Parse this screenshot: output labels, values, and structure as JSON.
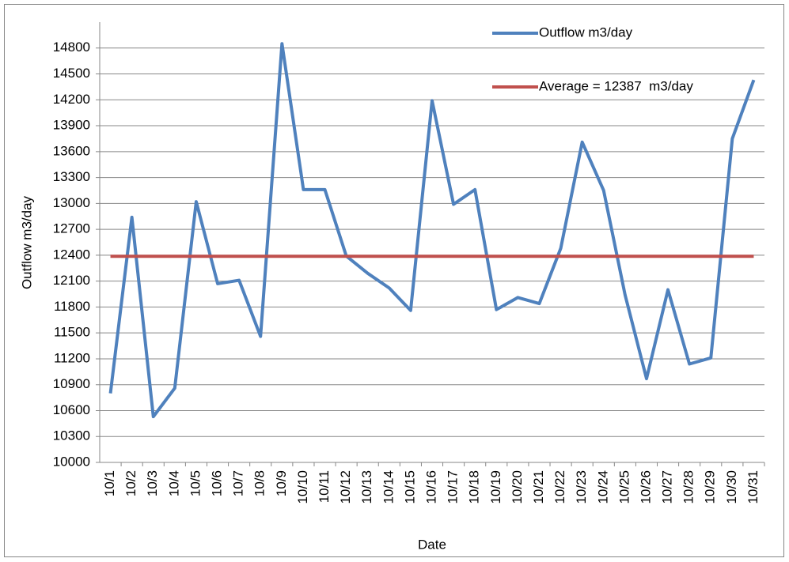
{
  "chart_data": {
    "type": "line",
    "y_label": "Outflow m3/day",
    "x_label": "Date",
    "categories": [
      "10/1",
      "10/2",
      "10/3",
      "10/4",
      "10/5",
      "10/6",
      "10/7",
      "10/8",
      "10/9",
      "10/10",
      "10/11",
      "10/12",
      "10/13",
      "10/14",
      "10/15",
      "10/16",
      "10/17",
      "10/18",
      "10/19",
      "10/20",
      "10/21",
      "10/22",
      "10/23",
      "10/24",
      "10/25",
      "10/26",
      "10/27",
      "10/28",
      "10/29",
      "10/30",
      "10/31"
    ],
    "series": [
      {
        "name": "Outflow m3/day",
        "color": "#4f81bd",
        "values": [
          10800,
          12840,
          10530,
          10860,
          13020,
          12070,
          12110,
          11460,
          14850,
          13160,
          13160,
          12390,
          12190,
          12020,
          11760,
          14190,
          12990,
          13160,
          11770,
          11910,
          11840,
          12480,
          13710,
          13150,
          11940,
          10970,
          12000,
          11140,
          11210,
          13750,
          14430
        ]
      },
      {
        "name": "Average = 12387  m3/day",
        "color": "#c0504d",
        "values": [
          12387,
          12387,
          12387,
          12387,
          12387,
          12387,
          12387,
          12387,
          12387,
          12387,
          12387,
          12387,
          12387,
          12387,
          12387,
          12387,
          12387,
          12387,
          12387,
          12387,
          12387,
          12387,
          12387,
          12387,
          12387,
          12387,
          12387,
          12387,
          12387,
          12387,
          12387
        ]
      }
    ],
    "ylim": [
      10000,
      15100
    ],
    "yticks": [
      10000,
      10300,
      10600,
      10900,
      11200,
      11500,
      11800,
      12100,
      12400,
      12700,
      13000,
      13300,
      13600,
      13900,
      14200,
      14500,
      14800
    ],
    "grid": true,
    "legend": "top-right"
  }
}
